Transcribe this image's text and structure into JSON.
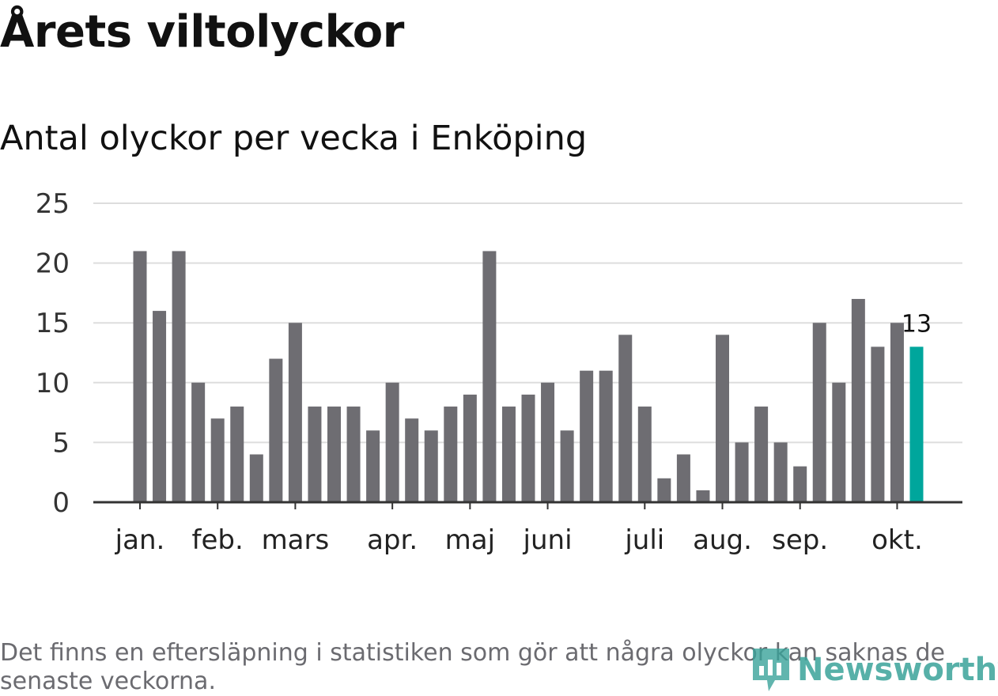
{
  "header": {
    "title": "Årets viltolyckor",
    "subtitle": "Antal olyckor per vecka i Enköping"
  },
  "footnote": "Det finns en eftersläpning i statistiken som gör att några olyckor kan saknas de senaste veckorna.",
  "logo": {
    "text": "Newsworthy",
    "icon": "newsworthy-logo-icon",
    "color": "#3aa39a"
  },
  "colors": {
    "bar": "#6e6d72",
    "highlight": "#00a69c",
    "grid": "#dddddd",
    "axis": "#333333"
  },
  "chart_data": {
    "type": "bar",
    "title": "Antal olyckor per vecka i Enköping",
    "ylim": [
      0,
      25
    ],
    "yticks": [
      0,
      5,
      10,
      15,
      20,
      25
    ],
    "grid": true,
    "values": [
      21,
      16,
      21,
      10,
      7,
      8,
      4,
      12,
      15,
      8,
      8,
      8,
      6,
      10,
      7,
      6,
      8,
      9,
      21,
      8,
      9,
      10,
      6,
      11,
      11,
      14,
      8,
      2,
      4,
      1,
      14,
      5,
      8,
      5,
      3,
      15,
      10,
      17,
      13,
      15,
      13
    ],
    "highlight_index": 40,
    "highlight_label": "13",
    "month_labels": [
      {
        "label": "jan.",
        "bar_index": 0
      },
      {
        "label": "feb.",
        "bar_index": 4
      },
      {
        "label": "mars",
        "bar_index": 8
      },
      {
        "label": "apr.",
        "bar_index": 13
      },
      {
        "label": "maj",
        "bar_index": 17
      },
      {
        "label": "juni",
        "bar_index": 21
      },
      {
        "label": "juli",
        "bar_index": 26
      },
      {
        "label": "aug.",
        "bar_index": 30
      },
      {
        "label": "sep.",
        "bar_index": 34
      },
      {
        "label": "okt.",
        "bar_index": 39
      }
    ]
  }
}
